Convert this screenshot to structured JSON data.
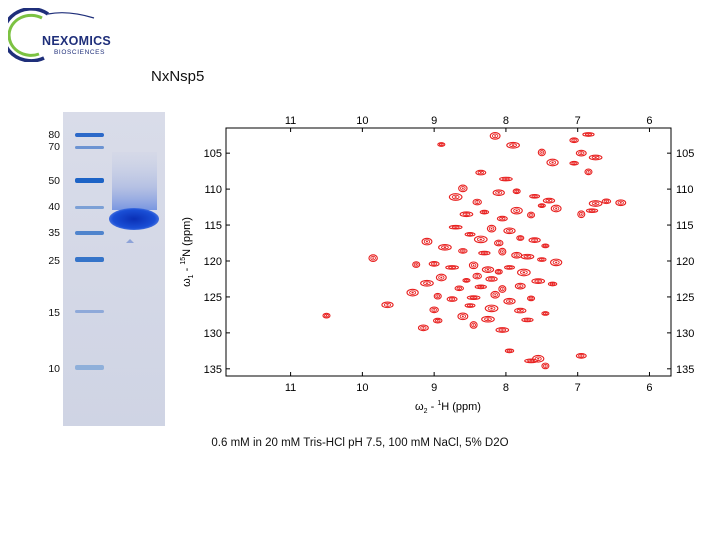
{
  "logo": {
    "name": "NEXOMICS",
    "subtitle": "BIOSCIENCES",
    "colors": {
      "navy": "#1f2f7a",
      "green": "#7cc242"
    }
  },
  "title": "NxNsp5",
  "gel": {
    "ladder_kda": [
      "80",
      "70",
      "50",
      "40",
      "35",
      "25",
      "15",
      "10"
    ],
    "colors": {
      "background": "#d5d9e8",
      "band": "#1646c8"
    }
  },
  "chart_data": {
    "type": "scatter",
    "title": "",
    "xlabel": "ω2 - 1H  (ppm)",
    "ylabel": "ω1 - 15N  (ppm)",
    "xlim": [
      11.9,
      5.7
    ],
    "ylim": [
      101.5,
      136
    ],
    "x_ticks": [
      11,
      10,
      9,
      8,
      7,
      6
    ],
    "y_ticks": [
      105,
      110,
      115,
      120,
      125,
      130,
      135
    ],
    "x_reversed": true,
    "y_reversed": true,
    "grid": false,
    "peak_color": "#e8201f",
    "peaks": [
      {
        "x": 8.9,
        "y": 103.8
      },
      {
        "x": 8.15,
        "y": 102.6
      },
      {
        "x": 7.9,
        "y": 103.9
      },
      {
        "x": 7.05,
        "y": 103.2
      },
      {
        "x": 6.85,
        "y": 102.4
      },
      {
        "x": 7.5,
        "y": 104.9
      },
      {
        "x": 6.95,
        "y": 105.0
      },
      {
        "x": 6.75,
        "y": 105.6
      },
      {
        "x": 7.05,
        "y": 106.4
      },
      {
        "x": 7.35,
        "y": 106.3
      },
      {
        "x": 6.85,
        "y": 107.6
      },
      {
        "x": 8.35,
        "y": 107.7
      },
      {
        "x": 8.0,
        "y": 108.6
      },
      {
        "x": 8.6,
        "y": 109.9
      },
      {
        "x": 8.1,
        "y": 110.5
      },
      {
        "x": 7.85,
        "y": 110.3
      },
      {
        "x": 7.6,
        "y": 111.0
      },
      {
        "x": 8.7,
        "y": 111.1
      },
      {
        "x": 8.4,
        "y": 111.8
      },
      {
        "x": 7.4,
        "y": 111.6
      },
      {
        "x": 7.5,
        "y": 112.3
      },
      {
        "x": 7.3,
        "y": 112.7
      },
      {
        "x": 6.75,
        "y": 112.0
      },
      {
        "x": 6.6,
        "y": 111.7
      },
      {
        "x": 6.8,
        "y": 113.0
      },
      {
        "x": 6.95,
        "y": 113.5
      },
      {
        "x": 6.4,
        "y": 111.9
      },
      {
        "x": 8.55,
        "y": 113.5
      },
      {
        "x": 8.3,
        "y": 113.2
      },
      {
        "x": 7.85,
        "y": 113.0
      },
      {
        "x": 7.65,
        "y": 113.6
      },
      {
        "x": 8.05,
        "y": 114.1
      },
      {
        "x": 8.7,
        "y": 115.3
      },
      {
        "x": 8.2,
        "y": 115.5
      },
      {
        "x": 7.95,
        "y": 115.8
      },
      {
        "x": 7.8,
        "y": 116.8
      },
      {
        "x": 8.5,
        "y": 116.3
      },
      {
        "x": 8.35,
        "y": 117.0
      },
      {
        "x": 8.1,
        "y": 117.5
      },
      {
        "x": 7.6,
        "y": 117.1
      },
      {
        "x": 7.45,
        "y": 117.9
      },
      {
        "x": 9.1,
        "y": 117.3
      },
      {
        "x": 8.85,
        "y": 118.1
      },
      {
        "x": 8.6,
        "y": 118.6
      },
      {
        "x": 8.3,
        "y": 118.9
      },
      {
        "x": 8.05,
        "y": 118.7
      },
      {
        "x": 7.85,
        "y": 119.2
      },
      {
        "x": 7.7,
        "y": 119.4
      },
      {
        "x": 7.5,
        "y": 119.8
      },
      {
        "x": 7.3,
        "y": 120.2
      },
      {
        "x": 9.25,
        "y": 120.5
      },
      {
        "x": 9.0,
        "y": 120.4
      },
      {
        "x": 8.75,
        "y": 120.9
      },
      {
        "x": 8.45,
        "y": 120.6
      },
      {
        "x": 8.25,
        "y": 121.2
      },
      {
        "x": 8.1,
        "y": 121.5
      },
      {
        "x": 7.95,
        "y": 120.9
      },
      {
        "x": 7.75,
        "y": 121.6
      },
      {
        "x": 8.4,
        "y": 122.1
      },
      {
        "x": 8.2,
        "y": 122.5
      },
      {
        "x": 8.55,
        "y": 122.7
      },
      {
        "x": 8.9,
        "y": 122.3
      },
      {
        "x": 9.1,
        "y": 123.1
      },
      {
        "x": 8.65,
        "y": 123.8
      },
      {
        "x": 8.35,
        "y": 123.6
      },
      {
        "x": 8.05,
        "y": 123.9
      },
      {
        "x": 7.8,
        "y": 123.5
      },
      {
        "x": 7.55,
        "y": 122.8
      },
      {
        "x": 7.35,
        "y": 123.2
      },
      {
        "x": 9.3,
        "y": 124.4
      },
      {
        "x": 8.95,
        "y": 124.9
      },
      {
        "x": 8.75,
        "y": 125.3
      },
      {
        "x": 8.45,
        "y": 125.1
      },
      {
        "x": 8.15,
        "y": 124.7
      },
      {
        "x": 7.95,
        "y": 125.6
      },
      {
        "x": 7.65,
        "y": 125.2
      },
      {
        "x": 8.5,
        "y": 126.2
      },
      {
        "x": 8.2,
        "y": 126.6
      },
      {
        "x": 9.0,
        "y": 126.8
      },
      {
        "x": 7.8,
        "y": 126.9
      },
      {
        "x": 7.45,
        "y": 127.3
      },
      {
        "x": 8.6,
        "y": 127.7
      },
      {
        "x": 8.25,
        "y": 128.1
      },
      {
        "x": 8.95,
        "y": 128.3
      },
      {
        "x": 7.7,
        "y": 128.2
      },
      {
        "x": 8.45,
        "y": 128.9
      },
      {
        "x": 9.15,
        "y": 129.3
      },
      {
        "x": 8.05,
        "y": 129.6
      },
      {
        "x": 7.95,
        "y": 132.5
      },
      {
        "x": 7.55,
        "y": 133.6
      },
      {
        "x": 7.45,
        "y": 134.6
      },
      {
        "x": 6.95,
        "y": 133.2
      },
      {
        "x": 7.65,
        "y": 133.9
      },
      {
        "x": 9.85,
        "y": 119.6
      },
      {
        "x": 9.65,
        "y": 126.1
      },
      {
        "x": 10.5,
        "y": 127.6
      }
    ]
  },
  "caption": "0.6 mM in 20 mM Tris-HCl pH 7.5, 100 mM NaCl, 5% D2O"
}
